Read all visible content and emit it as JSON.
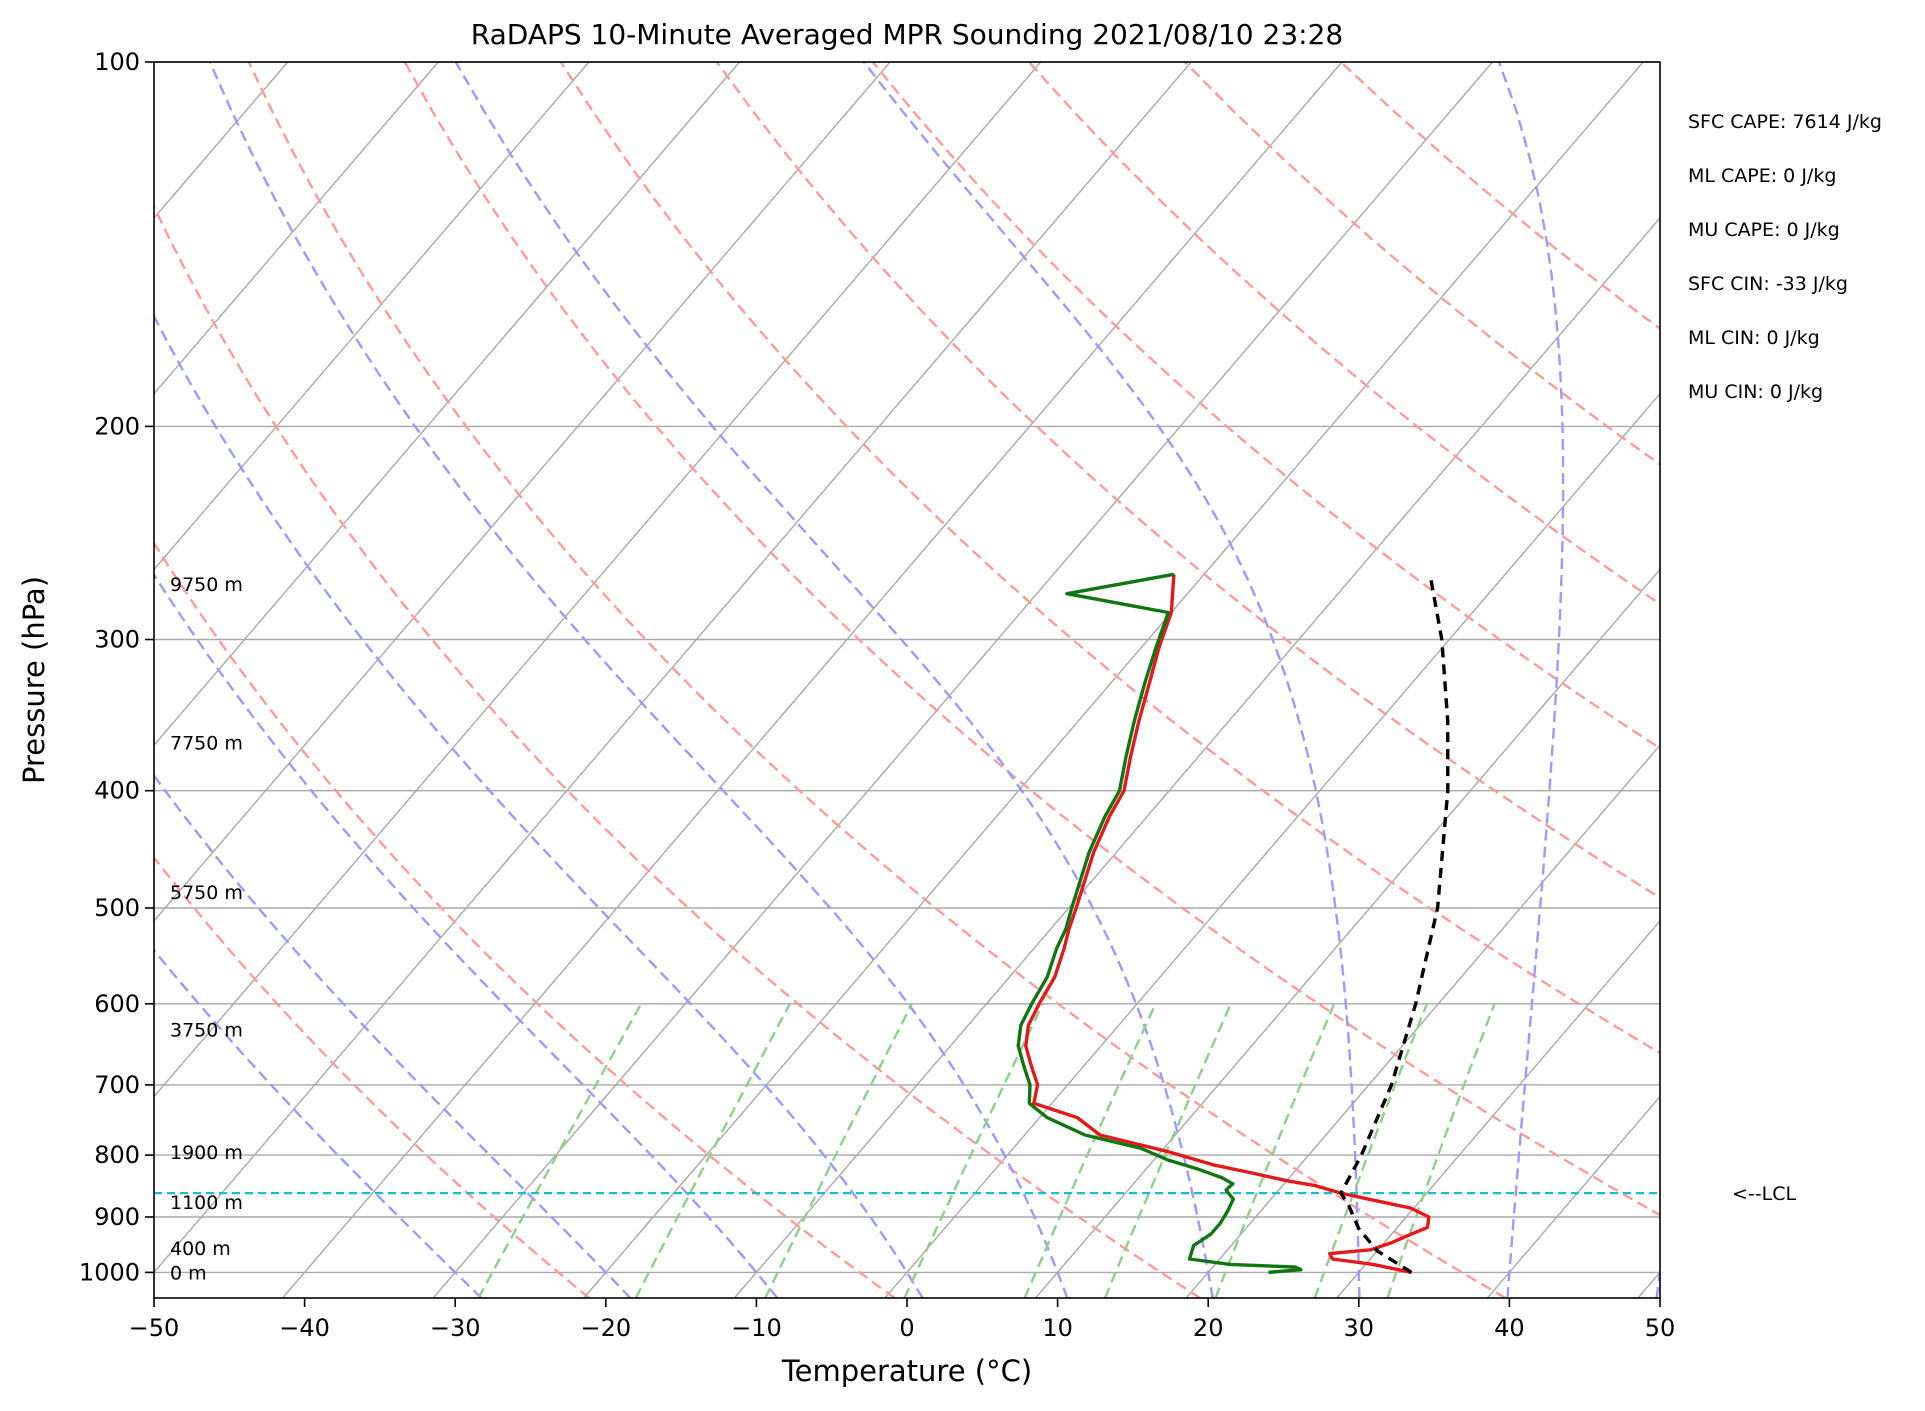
{
  "chart_data": {
    "type": "line",
    "title": "RaDAPS 10-Minute Averaged MPR Sounding 2021/08/10 23:28",
    "xlabel": "Temperature (°C)",
    "ylabel": "Pressure (hPa)",
    "xlim": [
      -50,
      50
    ],
    "ylim": [
      1050,
      100
    ],
    "y_scale": "log",
    "x_ticks": [
      -50,
      -40,
      -30,
      -20,
      -10,
      0,
      10,
      20,
      30,
      40,
      50
    ],
    "x_tick_labels": [
      "−50",
      "−40",
      "−30",
      "−20",
      "−10",
      "0",
      "10",
      "20",
      "30",
      "40",
      "50"
    ],
    "y_ticks": [
      100,
      200,
      300,
      400,
      500,
      600,
      700,
      800,
      900,
      1000
    ],
    "y_tick_labels": [
      "100",
      "200",
      "300",
      "400",
      "500",
      "600",
      "700",
      "800",
      "900",
      "1000"
    ],
    "grid": true,
    "height_labels": [
      {
        "text": "9750 m",
        "pressure": 270
      },
      {
        "text": "7750 m",
        "pressure": 365
      },
      {
        "text": "5750 m",
        "pressure": 485
      },
      {
        "text": "3750 m",
        "pressure": 630
      },
      {
        "text": "1900 m",
        "pressure": 795
      },
      {
        "text": "1100 m",
        "pressure": 875
      },
      {
        "text": "400 m",
        "pressure": 955
      },
      {
        "text": "0 m",
        "pressure": 1000
      }
    ],
    "indices": [
      "SFC CAPE: 7614 J/kg",
      "ML CAPE: 0 J/kg",
      "MU CAPE: 0 J/kg",
      "SFC CIN: -33 J/kg",
      "ML CIN: 0 J/kg",
      "MU CIN: 0 J/kg"
    ],
    "lcl": {
      "label": "<--LCL",
      "pressure": 860,
      "temperature": 24.3
    },
    "dry_adiabats_theta_K": [
      250,
      270,
      290,
      310,
      330,
      350,
      370,
      390,
      410,
      430,
      450
    ],
    "moist_adiabats_T_C": [
      -30,
      -20,
      -10,
      0,
      10,
      20,
      30,
      40,
      50
    ],
    "mixing_ratio_lines_gkg": [
      0.4,
      1,
      2,
      4,
      7,
      10,
      16,
      24,
      32
    ],
    "series": [
      {
        "role": "temperature",
        "color": "#e31a1c",
        "points": [
          {
            "p": 1000,
            "t": 33.5
          },
          {
            "p": 985,
            "t": 30.5
          },
          {
            "p": 975,
            "t": 27.5
          },
          {
            "p": 965,
            "t": 27.0
          },
          {
            "p": 958,
            "t": 29.5
          },
          {
            "p": 945,
            "t": 30.5
          },
          {
            "p": 930,
            "t": 31.3
          },
          {
            "p": 918,
            "t": 32.0
          },
          {
            "p": 900,
            "t": 31.5
          },
          {
            "p": 885,
            "t": 29.8
          },
          {
            "p": 870,
            "t": 26.5
          },
          {
            "p": 860,
            "t": 24.3
          },
          {
            "p": 848,
            "t": 22.2
          },
          {
            "p": 840,
            "t": 20.0
          },
          {
            "p": 828,
            "t": 17.3
          },
          {
            "p": 815,
            "t": 14.2
          },
          {
            "p": 795,
            "t": 10.5
          },
          {
            "p": 770,
            "t": 5.0
          },
          {
            "p": 745,
            "t": 2.5
          },
          {
            "p": 725,
            "t": -1.2
          },
          {
            "p": 700,
            "t": -2.0
          },
          {
            "p": 675,
            "t": -3.5
          },
          {
            "p": 650,
            "t": -5.0
          },
          {
            "p": 625,
            "t": -6.0
          },
          {
            "p": 600,
            "t": -6.5
          },
          {
            "p": 570,
            "t": -7.0
          },
          {
            "p": 540,
            "t": -8.0
          },
          {
            "p": 520,
            "t": -8.8
          },
          {
            "p": 500,
            "t": -9.5
          },
          {
            "p": 450,
            "t": -11.5
          },
          {
            "p": 420,
            "t": -12.5
          },
          {
            "p": 400,
            "t": -13.0
          },
          {
            "p": 375,
            "t": -14.5
          },
          {
            "p": 350,
            "t": -16.0
          },
          {
            "p": 325,
            "t": -17.5
          },
          {
            "p": 305,
            "t": -18.8
          },
          {
            "p": 285,
            "t": -20.0
          },
          {
            "p": 265,
            "t": -22.0
          }
        ]
      },
      {
        "role": "dewpoint",
        "color": "#117511",
        "points": [
          {
            "p": 1000,
            "t": 24.0
          },
          {
            "p": 995,
            "t": 26.0
          },
          {
            "p": 990,
            "t": 25.5
          },
          {
            "p": 985,
            "t": 21.0
          },
          {
            "p": 975,
            "t": 18.0
          },
          {
            "p": 965,
            "t": 17.8
          },
          {
            "p": 950,
            "t": 17.5
          },
          {
            "p": 930,
            "t": 18.0
          },
          {
            "p": 910,
            "t": 18.0
          },
          {
            "p": 890,
            "t": 17.8
          },
          {
            "p": 870,
            "t": 17.5
          },
          {
            "p": 855,
            "t": 16.5
          },
          {
            "p": 845,
            "t": 16.6
          },
          {
            "p": 835,
            "t": 15.5
          },
          {
            "p": 822,
            "t": 13.5
          },
          {
            "p": 808,
            "t": 11.0
          },
          {
            "p": 790,
            "t": 8.5
          },
          {
            "p": 770,
            "t": 4.0
          },
          {
            "p": 745,
            "t": 0.5
          },
          {
            "p": 725,
            "t": -1.5
          },
          {
            "p": 700,
            "t": -2.5
          },
          {
            "p": 675,
            "t": -4.0
          },
          {
            "p": 650,
            "t": -5.5
          },
          {
            "p": 625,
            "t": -6.5
          },
          {
            "p": 600,
            "t": -7.0
          },
          {
            "p": 570,
            "t": -7.5
          },
          {
            "p": 540,
            "t": -8.5
          },
          {
            "p": 520,
            "t": -9.0
          },
          {
            "p": 500,
            "t": -9.8
          },
          {
            "p": 450,
            "t": -11.8
          },
          {
            "p": 420,
            "t": -12.8
          },
          {
            "p": 400,
            "t": -13.3
          },
          {
            "p": 375,
            "t": -14.8
          },
          {
            "p": 350,
            "t": -16.3
          },
          {
            "p": 325,
            "t": -17.8
          },
          {
            "p": 305,
            "t": -19.0
          },
          {
            "p": 285,
            "t": -20.2
          },
          {
            "p": 275,
            "t": -28.0
          },
          {
            "p": 265,
            "t": -22.0
          }
        ]
      },
      {
        "role": "parcel-profile",
        "color": "#000000",
        "points": [
          {
            "p": 1000,
            "t": 33.5
          },
          {
            "p": 960,
            "t": 30.0
          },
          {
            "p": 920,
            "t": 27.5
          },
          {
            "p": 880,
            "t": 25.5
          },
          {
            "p": 860,
            "t": 24.3
          },
          {
            "p": 800,
            "t": 23.5
          },
          {
            "p": 700,
            "t": 21.5
          },
          {
            "p": 600,
            "t": 18.5
          },
          {
            "p": 500,
            "t": 14.5
          },
          {
            "p": 400,
            "t": 8.5
          },
          {
            "p": 350,
            "t": 4.5
          },
          {
            "p": 300,
            "t": -0.5
          },
          {
            "p": 265,
            "t": -5.0
          }
        ]
      }
    ],
    "colors": {
      "grid": "#a9a9a9",
      "skew_isotherm": "#a9a9a9",
      "dry_adiabat": "#ff9b9b",
      "moist_adiabat": "#9b9bff",
      "mixing_ratio": "#8fce8f",
      "lcl_line": "#17becf"
    }
  }
}
